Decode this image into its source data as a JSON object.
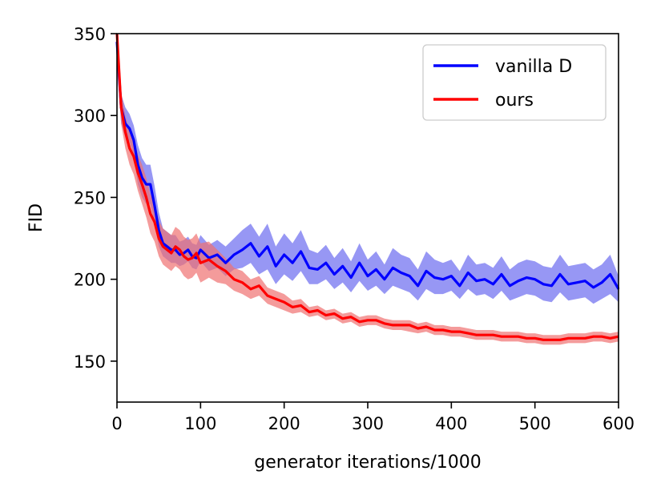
{
  "chart_data": {
    "type": "line",
    "title": "",
    "xlabel": "generator iterations/1000",
    "ylabel": "FID",
    "xlim": [
      0,
      600
    ],
    "ylim": [
      125,
      350
    ],
    "xticks": [
      0,
      100,
      200,
      300,
      400,
      500,
      600
    ],
    "yticks": [
      150,
      200,
      250,
      300,
      350
    ],
    "legend_position": "top-right",
    "series": [
      {
        "name": "vanilla D",
        "color": "#0000ff",
        "band_color": "#6b6bf0",
        "x": [
          0,
          5,
          10,
          15,
          20,
          25,
          30,
          35,
          40,
          45,
          50,
          55,
          60,
          65,
          70,
          75,
          80,
          85,
          90,
          95,
          100,
          110,
          120,
          130,
          140,
          150,
          160,
          170,
          180,
          190,
          200,
          210,
          220,
          230,
          240,
          250,
          260,
          270,
          280,
          290,
          300,
          310,
          320,
          330,
          340,
          350,
          360,
          370,
          380,
          390,
          400,
          410,
          420,
          430,
          440,
          450,
          460,
          470,
          480,
          490,
          500,
          510,
          520,
          530,
          540,
          550,
          560,
          570,
          580,
          590,
          600
        ],
        "values": [
          345,
          305,
          295,
          292,
          285,
          270,
          262,
          258,
          258,
          245,
          230,
          222,
          220,
          218,
          218,
          215,
          216,
          218,
          214,
          213,
          218,
          213,
          215,
          210,
          215,
          218,
          222,
          214,
          220,
          208,
          215,
          210,
          217,
          207,
          206,
          210,
          203,
          208,
          201,
          210,
          202,
          206,
          200,
          207,
          204,
          202,
          196,
          205,
          201,
          200,
          202,
          196,
          204,
          199,
          200,
          197,
          203,
          196,
          199,
          201,
          200,
          197,
          196,
          203,
          197,
          198,
          199,
          195,
          198,
          203,
          194
        ],
        "lower": [
          330,
          295,
          287,
          284,
          276,
          258,
          250,
          246,
          246,
          234,
          220,
          214,
          212,
          210,
          210,
          208,
          209,
          211,
          207,
          206,
          211,
          205,
          207,
          202,
          206,
          207,
          210,
          203,
          206,
          197,
          203,
          199,
          205,
          197,
          197,
          200,
          194,
          198,
          192,
          199,
          193,
          196,
          191,
          196,
          194,
          192,
          187,
          194,
          191,
          191,
          193,
          188,
          194,
          190,
          191,
          188,
          193,
          187,
          189,
          191,
          190,
          187,
          186,
          192,
          187,
          188,
          189,
          185,
          188,
          191,
          186
        ],
        "upper": [
          350,
          313,
          305,
          301,
          294,
          282,
          274,
          270,
          270,
          257,
          241,
          231,
          229,
          227,
          227,
          223,
          224,
          226,
          222,
          221,
          227,
          221,
          224,
          220,
          225,
          230,
          234,
          226,
          234,
          220,
          228,
          222,
          230,
          218,
          216,
          221,
          213,
          219,
          211,
          222,
          212,
          217,
          209,
          219,
          215,
          213,
          206,
          217,
          212,
          210,
          212,
          205,
          215,
          209,
          210,
          207,
          214,
          206,
          210,
          212,
          211,
          208,
          207,
          215,
          208,
          209,
          210,
          206,
          209,
          215,
          202
        ]
      },
      {
        "name": "ours",
        "color": "#ff0000",
        "band_color": "#f07070",
        "x": [
          0,
          5,
          10,
          15,
          20,
          25,
          30,
          35,
          40,
          45,
          50,
          55,
          60,
          65,
          70,
          75,
          80,
          85,
          90,
          95,
          100,
          110,
          120,
          130,
          140,
          150,
          160,
          170,
          180,
          190,
          200,
          210,
          220,
          230,
          240,
          250,
          260,
          270,
          280,
          290,
          300,
          310,
          320,
          330,
          340,
          350,
          360,
          370,
          380,
          390,
          400,
          410,
          420,
          430,
          440,
          450,
          460,
          470,
          480,
          490,
          500,
          510,
          520,
          530,
          540,
          550,
          560,
          570,
          580,
          590,
          600
        ],
        "values": [
          350,
          305,
          290,
          280,
          275,
          265,
          258,
          250,
          240,
          235,
          225,
          220,
          218,
          216,
          220,
          218,
          214,
          212,
          213,
          216,
          210,
          212,
          208,
          205,
          200,
          198,
          194,
          196,
          190,
          188,
          186,
          183,
          184,
          180,
          181,
          178,
          179,
          176,
          177,
          174,
          175,
          175,
          173,
          172,
          172,
          172,
          170,
          171,
          169,
          169,
          168,
          168,
          167,
          166,
          166,
          166,
          165,
          165,
          165,
          164,
          164,
          163,
          163,
          163,
          164,
          164,
          164,
          165,
          165,
          164,
          165
        ],
        "lower": [
          340,
          295,
          280,
          270,
          264,
          254,
          246,
          238,
          228,
          223,
          214,
          209,
          207,
          205,
          208,
          206,
          202,
          200,
          201,
          204,
          198,
          201,
          198,
          197,
          193,
          191,
          188,
          190,
          185,
          183,
          181,
          179,
          180,
          177,
          178,
          175,
          176,
          173,
          174,
          171,
          172,
          172,
          170,
          169,
          169,
          168,
          167,
          168,
          166,
          166,
          165,
          165,
          164,
          163,
          163,
          163,
          162,
          162,
          162,
          161,
          161,
          160,
          160,
          160,
          161,
          161,
          161,
          162,
          162,
          161,
          162
        ],
        "upper": [
          350,
          315,
          300,
          290,
          286,
          276,
          270,
          262,
          252,
          247,
          236,
          231,
          229,
          227,
          232,
          230,
          226,
          224,
          225,
          228,
          222,
          223,
          218,
          213,
          207,
          205,
          200,
          202,
          195,
          193,
          191,
          187,
          188,
          183,
          184,
          181,
          182,
          179,
          180,
          177,
          178,
          178,
          176,
          175,
          175,
          175,
          173,
          174,
          172,
          172,
          171,
          171,
          170,
          169,
          169,
          169,
          168,
          168,
          168,
          167,
          167,
          166,
          166,
          166,
          167,
          167,
          167,
          168,
          168,
          167,
          168
        ]
      }
    ]
  }
}
